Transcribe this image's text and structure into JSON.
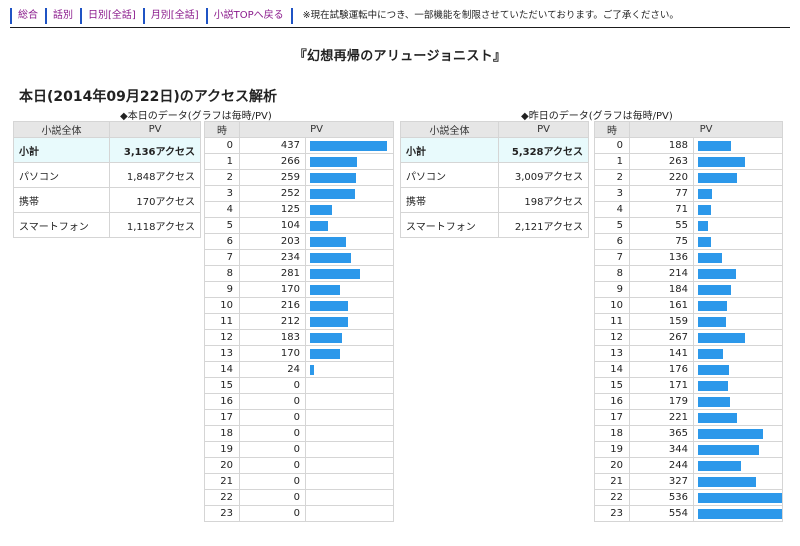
{
  "nav": {
    "links": [
      "総合",
      "話別",
      "日別[全話]",
      "月別[全話]",
      "小説TOPへ戻る"
    ],
    "notice": "※現在試験運転中につき、一部機能を制限させていただいております。ご了承ください。"
  },
  "novel_title": "『幻想再帰のアリュージョニスト』",
  "section_heading": "本日(2014年09月22日)のアクセス解析",
  "colors": {
    "bar": "#2c98ea",
    "nav_border": "#1f53c4",
    "nav_link": "#8a1a8c",
    "subtotal_bg": "#e8fafc",
    "header_bg": "#e6e6e6"
  },
  "today": {
    "caption": "◆本日のデータ(グラフは毎時/PV)",
    "summary_headers": [
      "小説全体",
      "PV"
    ],
    "summary": [
      {
        "label": "小計",
        "value": "3,136アクセス"
      },
      {
        "label": "パソコン",
        "value": "1,848アクセス"
      },
      {
        "label": "携帯",
        "value": "170アクセス"
      },
      {
        "label": "スマートフォン",
        "value": "1,118アクセス"
      }
    ],
    "hourly_headers": [
      "時",
      "PV"
    ],
    "hourly": [
      437,
      266,
      259,
      252,
      125,
      104,
      203,
      234,
      281,
      170,
      216,
      212,
      183,
      170,
      24,
      0,
      0,
      0,
      0,
      0,
      0,
      0,
      0,
      0
    ]
  },
  "yesterday": {
    "caption": "◆昨日のデータ(グラフは毎時/PV)",
    "summary_headers": [
      "小説全体",
      "PV"
    ],
    "summary": [
      {
        "label": "小計",
        "value": "5,328アクセス"
      },
      {
        "label": "パソコン",
        "value": "3,009アクセス"
      },
      {
        "label": "携帯",
        "value": "198アクセス"
      },
      {
        "label": "スマートフォン",
        "value": "2,121アクセス"
      }
    ],
    "hourly_headers": [
      "時",
      "PV"
    ],
    "hourly": [
      188,
      263,
      220,
      77,
      71,
      55,
      75,
      136,
      214,
      184,
      161,
      159,
      267,
      141,
      176,
      171,
      179,
      221,
      365,
      344,
      244,
      327,
      536,
      554
    ]
  }
}
